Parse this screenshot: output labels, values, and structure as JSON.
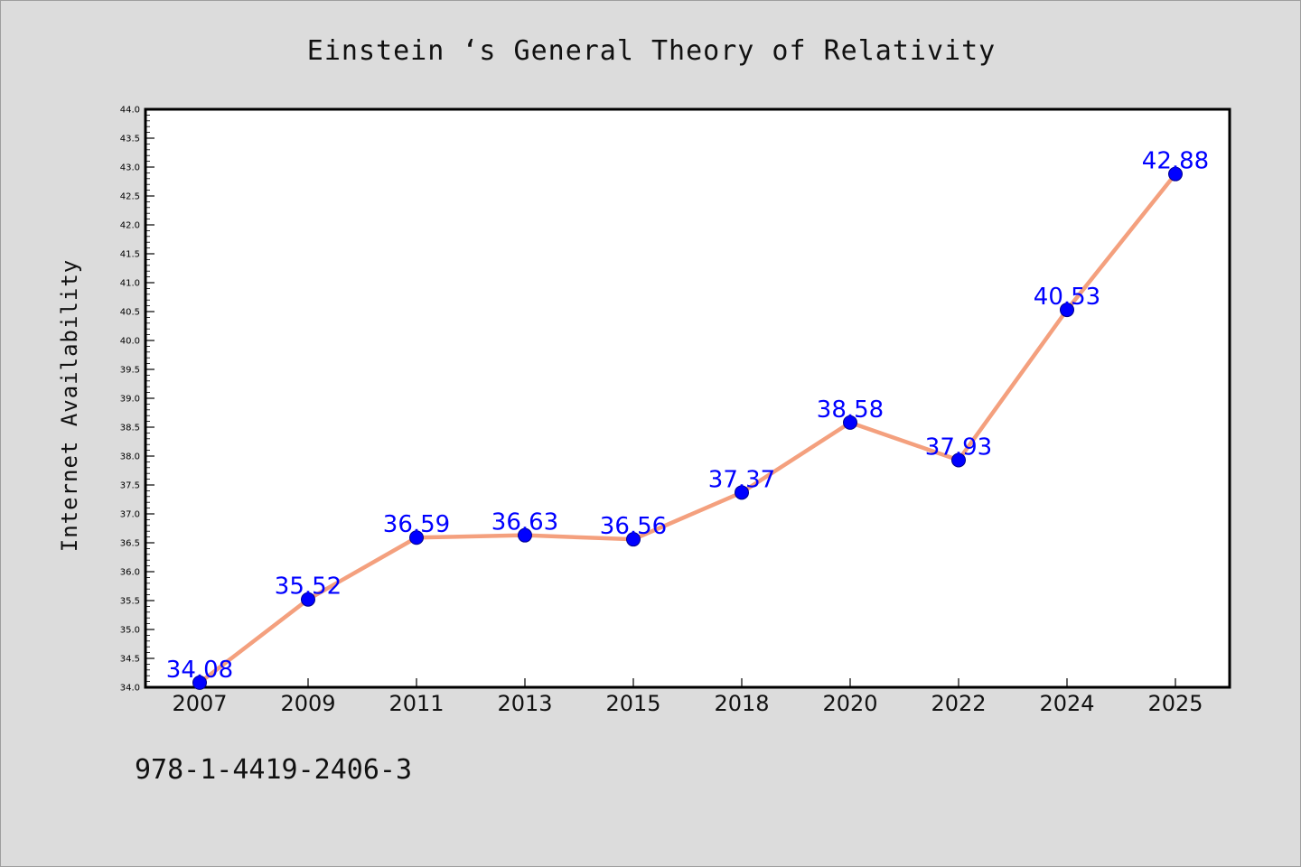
{
  "colors": {
    "background": "#dcdcdc",
    "plot_background": "#ffffff",
    "line": "#f4a07e",
    "marker": "#0000ff",
    "data_label": "#0000ff"
  },
  "footnote": "978-1-4419-2406-3",
  "chart_data": {
    "type": "line",
    "title": "Einstein ‘s General Theory of Relativity",
    "xlabel": "",
    "ylabel": "Internet Availability",
    "categories": [
      "2007",
      "2009",
      "2011",
      "2013",
      "2015",
      "2018",
      "2020",
      "2022",
      "2024",
      "2025"
    ],
    "series": [
      {
        "values": [
          34.08,
          35.52,
          36.59,
          36.63,
          36.56,
          37.37,
          38.58,
          37.93,
          40.53,
          42.88
        ]
      }
    ],
    "data_labels": [
      "34.08",
      "35.52",
      "36.59",
      "36.63",
      "36.56",
      "37.37",
      "38.58",
      "37.93",
      "40.53",
      "42.88"
    ],
    "ylim": [
      34.0,
      44.0
    ],
    "yticks": [
      "34.0",
      "34.5",
      "35.0",
      "35.5",
      "36.0",
      "36.5",
      "37.0",
      "37.5",
      "38.0",
      "38.5",
      "39.0",
      "39.5",
      "40.0",
      "40.5",
      "41.0",
      "41.5",
      "42.0",
      "42.5",
      "43.0",
      "43.5",
      "44.0"
    ],
    "grid": false,
    "legend": "none"
  }
}
